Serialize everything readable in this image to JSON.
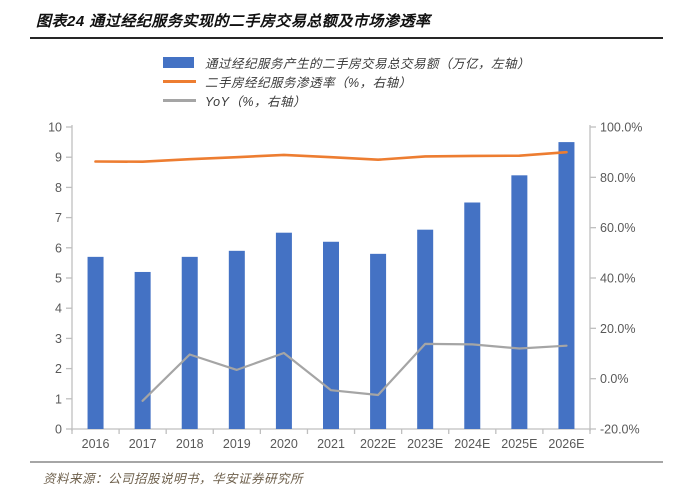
{
  "header": {
    "title": "图表24  通过经纪服务实现的二手房交易总额及市场渗透率"
  },
  "footer": {
    "source": "资料来源：公司招股说明书，华安证券研究所"
  },
  "colors": {
    "bar": "#4472C4",
    "penetration_line": "#ED7D31",
    "yoy_line": "#A5A5A5",
    "axis_line": "#BFBFBF",
    "tick_label": "#595959",
    "top_rule": "#262626",
    "bottom_rule": "#A6A6A6"
  },
  "chart_data": {
    "type": "bar",
    "subtype": "combo-bar-line",
    "categories": [
      "2016",
      "2017",
      "2018",
      "2019",
      "2020",
      "2021",
      "2022E",
      "2023E",
      "2024E",
      "2025E",
      "2026E"
    ],
    "series": [
      {
        "name": "通过经纪服务产生的二手房交易总交易额（万亿，左轴）",
        "type": "bar",
        "axis": "left",
        "color": "#4472C4",
        "values": [
          5.7,
          5.2,
          5.7,
          5.9,
          6.5,
          6.2,
          5.8,
          6.6,
          7.5,
          8.4,
          9.5
        ]
      },
      {
        "name": "二手房经纪服务渗透率（%，右轴）",
        "type": "line",
        "axis": "right",
        "color": "#ED7D31",
        "values": [
          86.3,
          86.2,
          87.2,
          88.0,
          88.9,
          88.0,
          87.0,
          88.3,
          88.5,
          88.6,
          90.0
        ]
      },
      {
        "name": "YoY（%，右轴）",
        "type": "line",
        "axis": "right",
        "color": "#A5A5A5",
        "values": [
          null,
          -8.8,
          9.6,
          3.5,
          10.2,
          -4.6,
          -6.5,
          13.8,
          13.6,
          12.0,
          13.1
        ]
      }
    ],
    "left_axis": {
      "min": 0,
      "max": 10,
      "step": 1,
      "labels": [
        "0",
        "1",
        "2",
        "3",
        "4",
        "5",
        "6",
        "7",
        "8",
        "9",
        "10"
      ]
    },
    "right_axis": {
      "min": -20,
      "max": 100,
      "step": 20,
      "labels": [
        "-20.0%",
        "0.0%",
        "20.0%",
        "40.0%",
        "60.0%",
        "80.0%",
        "100.0%"
      ]
    },
    "grid": false,
    "legend_position": "top"
  }
}
